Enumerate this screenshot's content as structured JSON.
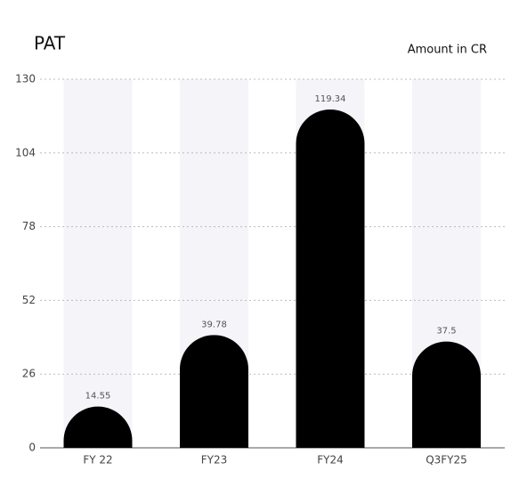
{
  "chart_data": {
    "type": "bar",
    "title": "PAT",
    "subtitle": "Amount in CR",
    "categories": [
      "FY 22",
      "FY23",
      "FY24",
      "Q3FY25"
    ],
    "values": [
      14.55,
      39.78,
      119.34,
      37.5
    ],
    "color": "#000000",
    "band_color": "#f4f4f9",
    "ylim": [
      0,
      130
    ],
    "yticks": [
      0,
      26,
      52,
      78,
      104,
      130
    ],
    "grid": true
  }
}
